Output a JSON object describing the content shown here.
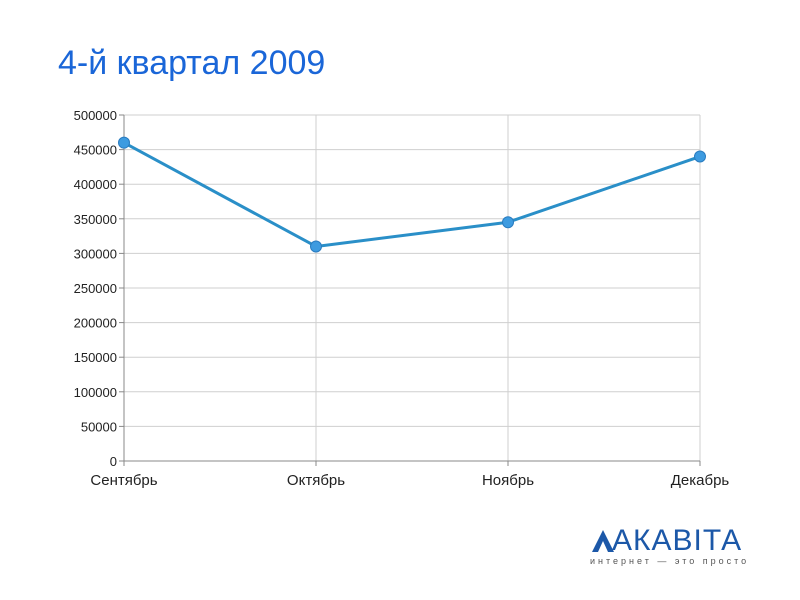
{
  "slide": {
    "title": "4-й квартал 2009"
  },
  "chart_data": {
    "type": "line",
    "categories": [
      "Сентябрь",
      "Октябрь",
      "Ноябрь",
      "Декабрь"
    ],
    "series": [
      {
        "values": [
          460000,
          310000,
          345000,
          440000
        ]
      }
    ],
    "ylim": [
      0,
      500000
    ],
    "yticks": [
      0,
      50000,
      100000,
      150000,
      200000,
      250000,
      300000,
      350000,
      400000,
      450000,
      500000
    ],
    "grid": true,
    "colors": {
      "line": "#2a8fc8",
      "marker": "#3d9be0",
      "grid": "#cfcfcf"
    }
  },
  "logo": {
    "text": "АКАВІТА",
    "tagline": "интернет — это просто",
    "colors": {
      "brand": "#1c58a8",
      "accent": "#2a8fc8"
    }
  }
}
